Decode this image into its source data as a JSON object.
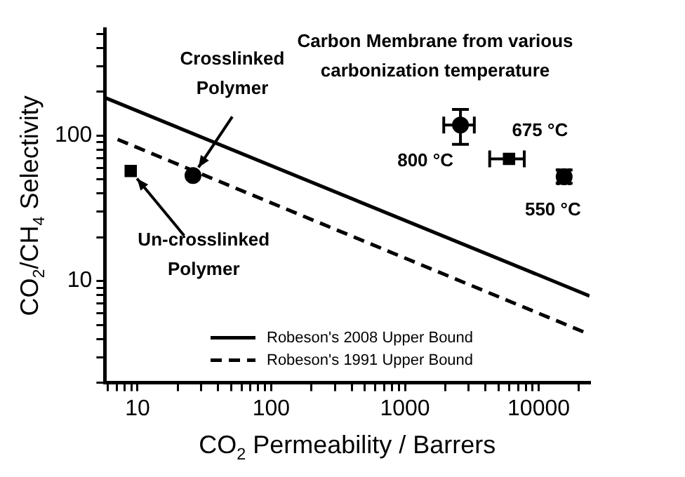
{
  "chart_data": {
    "type": "scatter",
    "xlabel": "CO$_{2}$ Permeability / Barrers",
    "ylabel": "CO$_{2}$/CH$_{4}$ Selectivity",
    "log": "xy",
    "grid": false,
    "legend": "bottom right",
    "xlim": [
      5.7,
      24000
    ],
    "ylim": [
      2,
      540
    ],
    "xticks": [
      {
        "value": 6,
        "label": null
      },
      {
        "value": 7,
        "label": null
      },
      {
        "value": 8,
        "label": null
      },
      {
        "value": 9,
        "label": null
      },
      10,
      {
        "value": 20,
        "label": null
      },
      {
        "value": 30,
        "label": null
      },
      {
        "value": 40,
        "label": null
      },
      {
        "value": 50,
        "label": null
      },
      {
        "value": 60,
        "label": null
      },
      {
        "value": 70,
        "label": null
      },
      {
        "value": 80,
        "label": null
      },
      {
        "value": 90,
        "label": null
      },
      100,
      {
        "value": 200,
        "label": null
      },
      {
        "value": 300,
        "label": null
      },
      {
        "value": 400,
        "label": null
      },
      {
        "value": 500,
        "label": null
      },
      {
        "value": 600,
        "label": null
      },
      {
        "value": 700,
        "label": null
      },
      {
        "value": 800,
        "label": null
      },
      {
        "value": 900,
        "label": null
      },
      1000,
      {
        "value": 2000,
        "label": null
      },
      {
        "value": 3000,
        "label": null
      },
      {
        "value": 4000,
        "label": null
      },
      {
        "value": 5000,
        "label": null
      },
      {
        "value": 6000,
        "label": null
      },
      {
        "value": 7000,
        "label": null
      },
      {
        "value": 8000,
        "label": null
      },
      {
        "value": 9000,
        "label": null
      },
      10000,
      {
        "value": 20000,
        "label": null
      }
    ],
    "yticks": [
      {
        "value": 2,
        "label": null
      },
      {
        "value": 3,
        "label": null
      },
      {
        "value": 4,
        "label": null
      },
      {
        "value": 5,
        "label": null
      },
      {
        "value": 6,
        "label": null
      },
      {
        "value": 7,
        "label": null
      },
      {
        "value": 8,
        "label": null
      },
      {
        "value": 9,
        "label": null
      },
      10,
      {
        "value": 20,
        "label": null
      },
      {
        "value": 30,
        "label": null
      },
      {
        "value": 40,
        "label": null
      },
      {
        "value": 50,
        "label": null
      },
      {
        "value": 60,
        "label": null
      },
      {
        "value": 70,
        "label": null
      },
      {
        "value": 80,
        "label": null
      },
      {
        "value": 90,
        "label": null
      },
      100,
      {
        "value": 200,
        "label": null
      },
      {
        "value": 300,
        "label": null
      },
      {
        "value": 400,
        "label": null
      },
      {
        "value": 500,
        "label": null
      }
    ],
    "series": [
      {
        "name": "Robeson's 2008 Upper Bound",
        "type": "line",
        "line_style": "solid",
        "marker": "none",
        "color": "#000000",
        "x": [
          5.7,
          24000
        ],
        "values": [
          182,
          7.9
        ]
      },
      {
        "name": "Robeson's 1991 Upper Bound",
        "type": "line",
        "line_style": "dashed",
        "marker": "none",
        "color": "#000000",
        "x": [
          7.1,
          24000
        ],
        "values": [
          94,
          4.3
        ]
      },
      {
        "type": "scatter",
        "marker": "square",
        "color": "#000000",
        "x": [
          8.9
        ],
        "values": [
          57
        ]
      },
      {
        "type": "scatter",
        "marker": "circle",
        "color": "#000000",
        "x": [
          26
        ],
        "values": [
          53
        ]
      },
      {
        "name": "800 °C",
        "type": "scatter",
        "marker": "circle",
        "color": "#000000",
        "x": [
          2600
        ],
        "values": [
          118
        ],
        "errors": [
          [
            87,
            151
          ]
        ],
        "xerrors": [
          [
            1950,
            3300
          ]
        ]
      },
      {
        "name": "675 °C",
        "type": "scatter",
        "marker": "square",
        "color": "#000000",
        "x": [
          6000
        ],
        "values": [
          69
        ],
        "xerrors": [
          [
            4300,
            7800
          ]
        ]
      },
      {
        "name": "550 °C",
        "type": "scatter",
        "marker": "circle",
        "color": "#000000",
        "x": [
          15500
        ],
        "values": [
          52
        ],
        "errors": [
          [
            47,
            58
          ]
        ],
        "xerrors": [
          [
            14000,
            17000
          ]
        ]
      }
    ],
    "annotations": [
      "Carbon Membrane from various\ncarbonization temperature",
      {
        "text": "Crosslinked\nPolymer",
        "x": 26,
        "y": 53
      },
      {
        "text": "Un-crosslinked\nPolymer",
        "x": 8.9,
        "y": 57
      }
    ]
  }
}
